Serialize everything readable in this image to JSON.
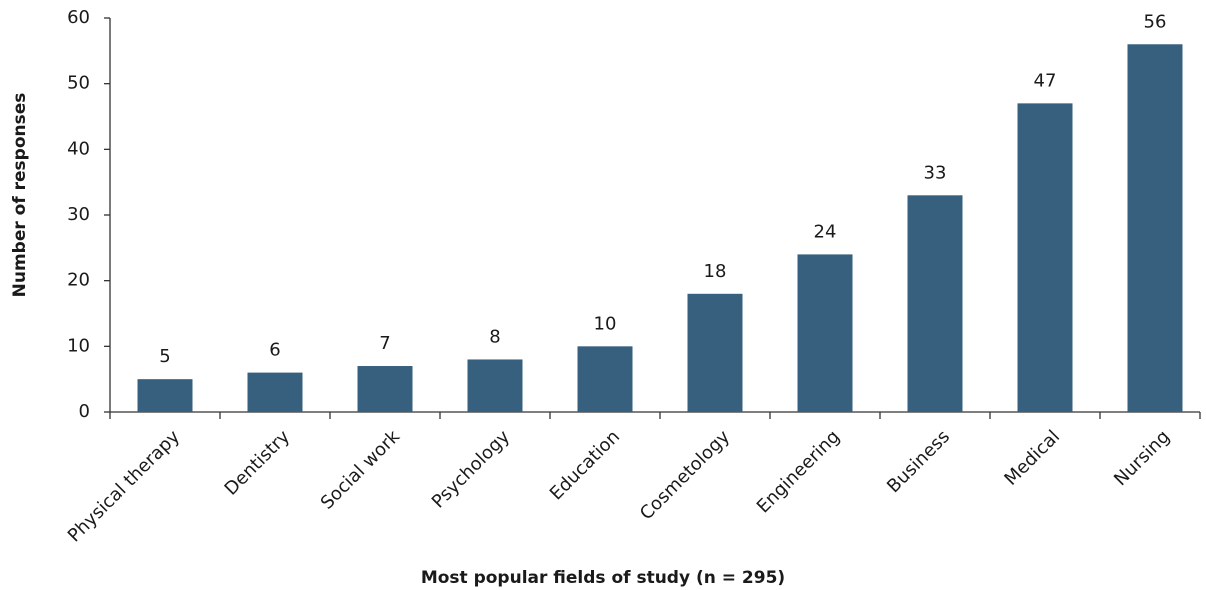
{
  "chart_data": {
    "type": "bar",
    "x_label": "Most popular fields of study (n = 295)",
    "y_label": "Number of responses",
    "categories": [
      "Physical therapy",
      "Dentistry",
      "Social work",
      "Psychology",
      "Education",
      "Cosmetology",
      "Engineering",
      "Business",
      "Medical",
      "Nursing"
    ],
    "values": [
      5,
      6,
      7,
      8,
      10,
      18,
      24,
      33,
      47,
      56
    ],
    "color": "#37607f",
    "ylim": [
      0,
      60
    ],
    "yticks": [
      0,
      10,
      20,
      30,
      40,
      50,
      60
    ],
    "grid": false
  }
}
